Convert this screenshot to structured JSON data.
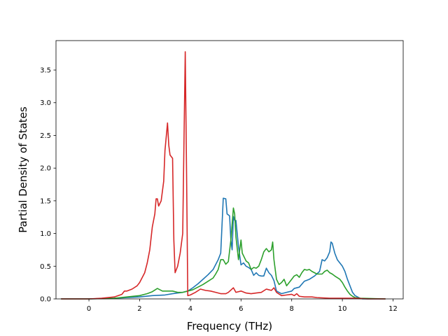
{
  "chart_data": {
    "type": "line",
    "title": "",
    "xlabel": "Frequency (THz)",
    "ylabel": "Partial Density of States",
    "xlim": [
      -1.3,
      12.4
    ],
    "ylim": [
      0.0,
      3.95
    ],
    "xticks": [
      0,
      2,
      4,
      6,
      8,
      10,
      12
    ],
    "xtick_labels": [
      "0",
      "2",
      "4",
      "6",
      "8",
      "10",
      "12"
    ],
    "yticks": [
      0.0,
      0.5,
      1.0,
      1.5,
      2.0,
      2.5,
      3.0,
      3.5
    ],
    "ytick_labels": [
      "0.0",
      "0.5",
      "1.0",
      "1.5",
      "2.0",
      "2.5",
      "3.0",
      "3.5"
    ],
    "grid": false,
    "legend": "none",
    "series": [
      {
        "color": "#1f77b4",
        "points": [
          [
            -1.1,
            0
          ],
          [
            0.0,
            0
          ],
          [
            0.5,
            0.005
          ],
          [
            1.0,
            0.01
          ],
          [
            1.5,
            0.02
          ],
          [
            2.0,
            0.03
          ],
          [
            2.5,
            0.05
          ],
          [
            3.0,
            0.06
          ],
          [
            3.3,
            0.08
          ],
          [
            3.5,
            0.09
          ],
          [
            3.7,
            0.1
          ],
          [
            3.9,
            0.12
          ],
          [
            4.1,
            0.17
          ],
          [
            4.3,
            0.23
          ],
          [
            4.5,
            0.3
          ],
          [
            4.7,
            0.37
          ],
          [
            4.9,
            0.45
          ],
          [
            5.1,
            0.6
          ],
          [
            5.2,
            0.7
          ],
          [
            5.3,
            1.54
          ],
          [
            5.4,
            1.53
          ],
          [
            5.45,
            1.3
          ],
          [
            5.55,
            1.27
          ],
          [
            5.6,
            0.9
          ],
          [
            5.65,
            0.75
          ],
          [
            5.7,
            1.26
          ],
          [
            5.75,
            1.2
          ],
          [
            5.8,
            1.2
          ],
          [
            5.85,
            1.0
          ],
          [
            5.9,
            0.8
          ],
          [
            6.0,
            0.52
          ],
          [
            6.1,
            0.55
          ],
          [
            6.2,
            0.5
          ],
          [
            6.3,
            0.48
          ],
          [
            6.4,
            0.45
          ],
          [
            6.5,
            0.36
          ],
          [
            6.6,
            0.4
          ],
          [
            6.7,
            0.36
          ],
          [
            6.8,
            0.35
          ],
          [
            6.9,
            0.35
          ],
          [
            7.0,
            0.47
          ],
          [
            7.1,
            0.4
          ],
          [
            7.2,
            0.36
          ],
          [
            7.3,
            0.28
          ],
          [
            7.4,
            0.12
          ],
          [
            7.6,
            0.08
          ],
          [
            7.8,
            0.1
          ],
          [
            8.0,
            0.12
          ],
          [
            8.1,
            0.16
          ],
          [
            8.3,
            0.18
          ],
          [
            8.5,
            0.27
          ],
          [
            8.7,
            0.3
          ],
          [
            8.9,
            0.35
          ],
          [
            9.1,
            0.42
          ],
          [
            9.2,
            0.6
          ],
          [
            9.3,
            0.58
          ],
          [
            9.4,
            0.63
          ],
          [
            9.5,
            0.72
          ],
          [
            9.55,
            0.87
          ],
          [
            9.6,
            0.85
          ],
          [
            9.7,
            0.7
          ],
          [
            9.8,
            0.6
          ],
          [
            10.0,
            0.5
          ],
          [
            10.1,
            0.42
          ],
          [
            10.2,
            0.3
          ],
          [
            10.3,
            0.2
          ],
          [
            10.4,
            0.1
          ],
          [
            10.5,
            0.05
          ],
          [
            10.6,
            0.03
          ],
          [
            10.7,
            0.01
          ],
          [
            10.8,
            0
          ],
          [
            11.7,
            0
          ]
        ]
      },
      {
        "color": "#2ca02c",
        "points": [
          [
            -1.1,
            0
          ],
          [
            0.0,
            0
          ],
          [
            0.5,
            0.005
          ],
          [
            1.0,
            0.01
          ],
          [
            1.5,
            0.03
          ],
          [
            2.0,
            0.05
          ],
          [
            2.3,
            0.08
          ],
          [
            2.5,
            0.11
          ],
          [
            2.7,
            0.16
          ],
          [
            2.9,
            0.12
          ],
          [
            3.1,
            0.12
          ],
          [
            3.3,
            0.12
          ],
          [
            3.5,
            0.1
          ],
          [
            3.7,
            0.1
          ],
          [
            3.9,
            0.12
          ],
          [
            4.1,
            0.14
          ],
          [
            4.3,
            0.18
          ],
          [
            4.5,
            0.22
          ],
          [
            4.7,
            0.27
          ],
          [
            4.9,
            0.32
          ],
          [
            5.0,
            0.38
          ],
          [
            5.1,
            0.45
          ],
          [
            5.2,
            0.6
          ],
          [
            5.3,
            0.6
          ],
          [
            5.4,
            0.53
          ],
          [
            5.5,
            0.57
          ],
          [
            5.6,
            0.9
          ],
          [
            5.7,
            1.39
          ],
          [
            5.75,
            1.3
          ],
          [
            5.8,
            0.95
          ],
          [
            5.9,
            0.6
          ],
          [
            6.0,
            0.9
          ],
          [
            6.05,
            0.7
          ],
          [
            6.2,
            0.58
          ],
          [
            6.3,
            0.55
          ],
          [
            6.4,
            0.45
          ],
          [
            6.5,
            0.48
          ],
          [
            6.6,
            0.47
          ],
          [
            6.7,
            0.5
          ],
          [
            6.8,
            0.6
          ],
          [
            6.9,
            0.72
          ],
          [
            7.0,
            0.77
          ],
          [
            7.1,
            0.72
          ],
          [
            7.2,
            0.75
          ],
          [
            7.25,
            0.87
          ],
          [
            7.3,
            0.6
          ],
          [
            7.4,
            0.3
          ],
          [
            7.5,
            0.22
          ],
          [
            7.6,
            0.25
          ],
          [
            7.7,
            0.3
          ],
          [
            7.8,
            0.2
          ],
          [
            7.9,
            0.25
          ],
          [
            8.0,
            0.3
          ],
          [
            8.1,
            0.35
          ],
          [
            8.2,
            0.37
          ],
          [
            8.3,
            0.33
          ],
          [
            8.4,
            0.4
          ],
          [
            8.5,
            0.45
          ],
          [
            8.6,
            0.44
          ],
          [
            8.7,
            0.45
          ],
          [
            8.8,
            0.42
          ],
          [
            8.9,
            0.4
          ],
          [
            9.0,
            0.38
          ],
          [
            9.2,
            0.38
          ],
          [
            9.3,
            0.42
          ],
          [
            9.4,
            0.44
          ],
          [
            9.5,
            0.4
          ],
          [
            9.6,
            0.38
          ],
          [
            9.7,
            0.35
          ],
          [
            9.9,
            0.3
          ],
          [
            10.0,
            0.25
          ],
          [
            10.1,
            0.18
          ],
          [
            10.2,
            0.12
          ],
          [
            10.3,
            0.07
          ],
          [
            10.4,
            0.04
          ],
          [
            10.5,
            0.02
          ],
          [
            10.7,
            0.01
          ],
          [
            11.7,
            0
          ]
        ]
      },
      {
        "color": "#d62728",
        "points": [
          [
            -1.1,
            0
          ],
          [
            0.0,
            0
          ],
          [
            0.5,
            0.01
          ],
          [
            1.0,
            0.03
          ],
          [
            1.3,
            0.07
          ],
          [
            1.4,
            0.12
          ],
          [
            1.5,
            0.12
          ],
          [
            1.7,
            0.15
          ],
          [
            1.9,
            0.2
          ],
          [
            2.0,
            0.25
          ],
          [
            2.2,
            0.4
          ],
          [
            2.3,
            0.55
          ],
          [
            2.4,
            0.75
          ],
          [
            2.5,
            1.1
          ],
          [
            2.6,
            1.3
          ],
          [
            2.65,
            1.53
          ],
          [
            2.7,
            1.53
          ],
          [
            2.75,
            1.42
          ],
          [
            2.85,
            1.5
          ],
          [
            2.95,
            1.8
          ],
          [
            3.0,
            2.27
          ],
          [
            3.1,
            2.69
          ],
          [
            3.15,
            2.35
          ],
          [
            3.2,
            2.2
          ],
          [
            3.3,
            2.15
          ],
          [
            3.35,
            0.9
          ],
          [
            3.4,
            0.4
          ],
          [
            3.5,
            0.5
          ],
          [
            3.6,
            0.7
          ],
          [
            3.7,
            1.0
          ],
          [
            3.75,
            2.4
          ],
          [
            3.8,
            3.78
          ],
          [
            3.85,
            2.0
          ],
          [
            3.9,
            0.05
          ],
          [
            4.0,
            0.06
          ],
          [
            4.2,
            0.1
          ],
          [
            4.4,
            0.15
          ],
          [
            4.6,
            0.13
          ],
          [
            4.8,
            0.12
          ],
          [
            5.0,
            0.1
          ],
          [
            5.2,
            0.08
          ],
          [
            5.4,
            0.08
          ],
          [
            5.5,
            0.1
          ],
          [
            5.7,
            0.17
          ],
          [
            5.8,
            0.1
          ],
          [
            6.0,
            0.12
          ],
          [
            6.2,
            0.09
          ],
          [
            6.4,
            0.08
          ],
          [
            6.6,
            0.09
          ],
          [
            6.8,
            0.1
          ],
          [
            7.0,
            0.15
          ],
          [
            7.2,
            0.13
          ],
          [
            7.3,
            0.17
          ],
          [
            7.4,
            0.1
          ],
          [
            7.6,
            0.05
          ],
          [
            7.8,
            0.06
          ],
          [
            8.0,
            0.07
          ],
          [
            8.1,
            0.05
          ],
          [
            8.2,
            0.08
          ],
          [
            8.3,
            0.04
          ],
          [
            8.5,
            0.03
          ],
          [
            8.8,
            0.03
          ],
          [
            9.0,
            0.02
          ],
          [
            9.5,
            0.01
          ],
          [
            10.0,
            0.01
          ],
          [
            10.5,
            0.01
          ],
          [
            11.0,
            0
          ],
          [
            11.7,
            0
          ]
        ]
      }
    ]
  }
}
